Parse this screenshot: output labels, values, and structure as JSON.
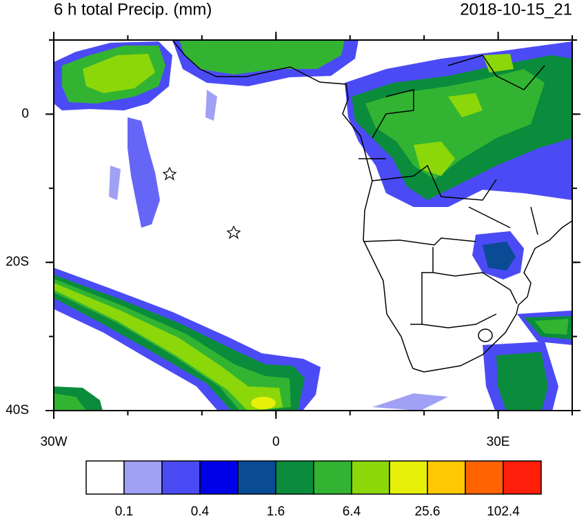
{
  "header": {
    "title": "6 h total Precip. (mm)",
    "timestamp": "2018-10-15_21"
  },
  "map": {
    "lon_range": [
      -30,
      40
    ],
    "lat_range": [
      -40,
      10
    ],
    "lon_ticks": [
      {
        "value": -30,
        "label": "30W"
      },
      0,
      {
        "value": 30,
        "label": "30E"
      }
    ],
    "lat_ticks": [
      0,
      {
        "value": -20,
        "label": "20S"
      },
      {
        "value": -40,
        "label": "40S"
      }
    ]
  },
  "colorbar": {
    "colors": [
      "#ffffff",
      "#a0a0f5",
      "#4b4bf5",
      "#0000e6",
      "#0a4b96",
      "#0a8c3c",
      "#32b432",
      "#8cd70a",
      "#e6f00a",
      "#ffc800",
      "#ff6400",
      "#ff1e0a"
    ],
    "labels": [
      0.1,
      0.4,
      1.6,
      6.4,
      25.6,
      102.4
    ]
  }
}
